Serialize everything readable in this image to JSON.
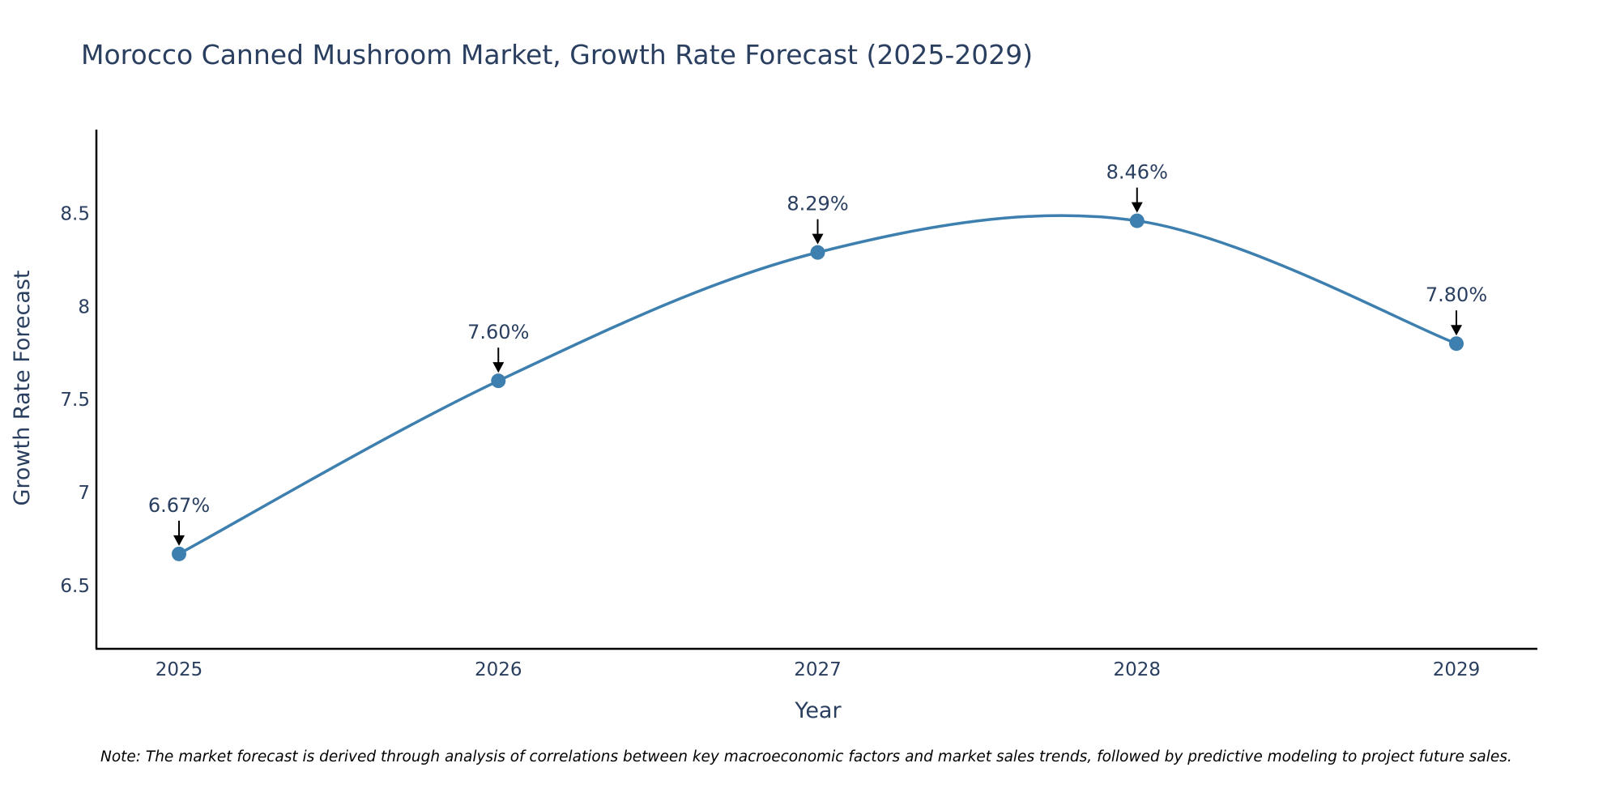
{
  "chart_data": {
    "type": "line",
    "title": "Morocco Canned Mushroom Market, Growth Rate Forecast (2025-2029)",
    "xlabel": "Year",
    "ylabel": "Growth Rate Forecast",
    "categories": [
      "2025",
      "2026",
      "2027",
      "2028",
      "2029"
    ],
    "series": [
      {
        "name": "Growth Rate Forecast",
        "values": [
          6.67,
          7.6,
          8.29,
          8.46,
          7.8
        ],
        "labels": [
          "6.67%",
          "7.60%",
          "8.29%",
          "8.46%",
          "7.80%"
        ]
      }
    ],
    "yticks": [
      6.5,
      7,
      7.5,
      8,
      8.5
    ],
    "ytick_labels": [
      "6.5",
      "7",
      "7.5",
      "8",
      "8.5"
    ],
    "ylim": [
      6.16,
      8.95
    ],
    "grid": false,
    "line_shape": "spline",
    "note": "Note: The market forecast is derived through analysis of correlations between key macroeconomic factors and market sales trends, followed by predictive modeling to project future sales."
  },
  "colors": {
    "line": "#3d7fae",
    "marker": "#3d7fae",
    "text": "#2a3f5f",
    "axis": "#000000",
    "arrow": "#000000"
  }
}
